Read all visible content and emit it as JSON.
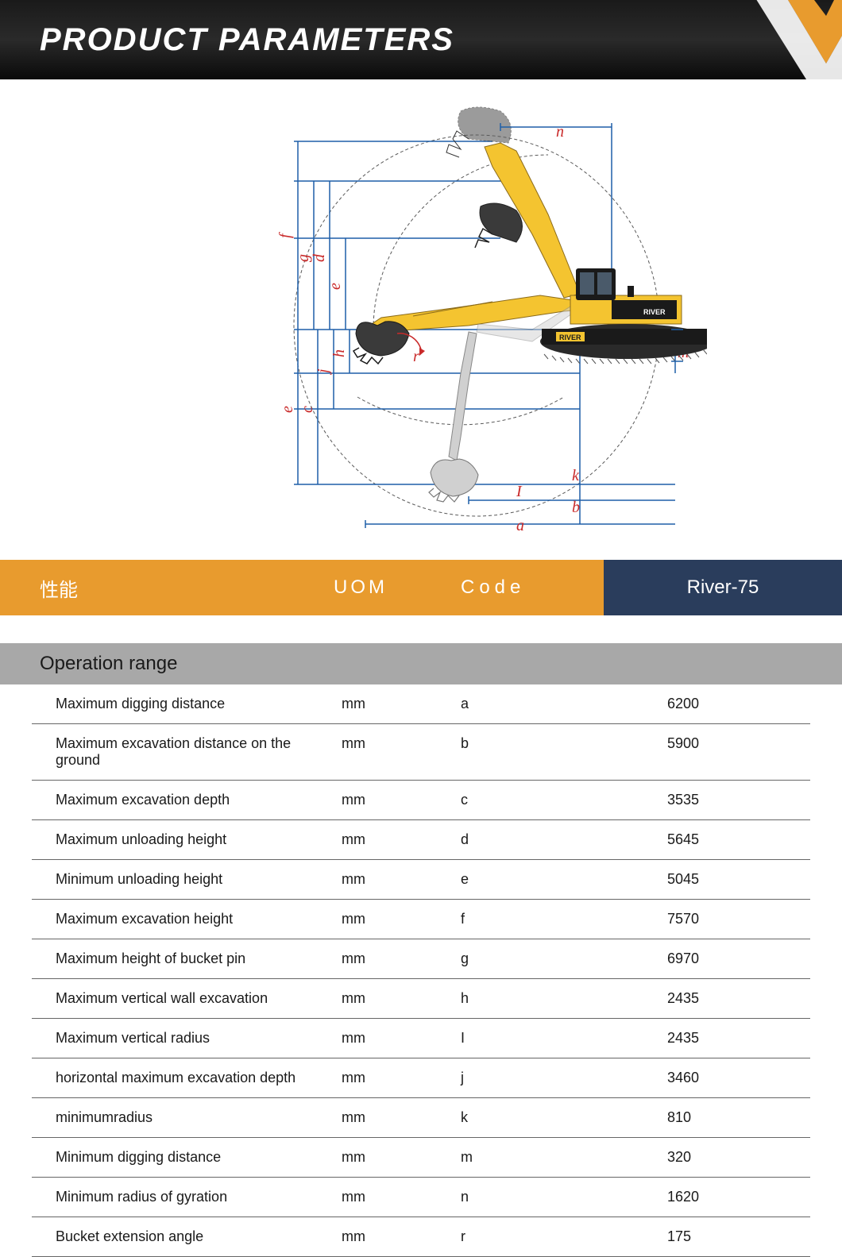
{
  "header": {
    "title": "PRODUCT PARAMETERS",
    "chevron_colors": {
      "outer": "#e89b2e",
      "inner": "#ffffff"
    }
  },
  "diagram": {
    "excavator_body_color": "#f4c430",
    "excavator_cab_color": "#1a1a1a",
    "track_color": "#2a2a2a",
    "guide_line_color": "#1e5fa8",
    "label_color": "#c92a2a",
    "outline_color": "#5a5a5a",
    "labels": [
      "a",
      "b",
      "c",
      "d",
      "e",
      "f",
      "g",
      "h",
      "I",
      "j",
      "k",
      "m",
      "n",
      "r"
    ],
    "brand_text": "RIVER"
  },
  "column_headers": {
    "performance": "性能",
    "uom": "UOM",
    "code": "Code",
    "model": "River-75",
    "orange_bg": "#e89b2e",
    "blue_bg": "#2a3d5c"
  },
  "section": {
    "title": "Operation range",
    "bg_color": "#a8a8a8"
  },
  "specs": [
    {
      "label": "Maximum digging distance",
      "uom": "mm",
      "code": "a",
      "value": "6200"
    },
    {
      "label": "Maximum excavation distance on the ground",
      "uom": "mm",
      "code": "b",
      "value": "5900"
    },
    {
      "label": "Maximum excavation depth",
      "uom": "mm",
      "code": "c",
      "value": "3535"
    },
    {
      "label": "Maximum unloading height",
      "uom": "mm",
      "code": "d",
      "value": "5645"
    },
    {
      "label": "Minimum unloading height",
      "uom": "mm",
      "code": "e",
      "value": "5045"
    },
    {
      "label": "Maximum excavation height",
      "uom": "mm",
      "code": "f",
      "value": "7570"
    },
    {
      "label": "Maximum height of bucket pin",
      "uom": "mm",
      "code": "g",
      "value": "6970"
    },
    {
      "label": "Maximum vertical wall excavation",
      "uom": "mm",
      "code": "h",
      "value": "2435"
    },
    {
      "label": "Maximum vertical radius",
      "uom": "mm",
      "code": "I",
      "value": "2435"
    },
    {
      "label": "horizontal maximum excavation depth",
      "uom": "mm",
      "code": "j",
      "value": "3460"
    },
    {
      "label": "minimumradius",
      "uom": "mm",
      "code": "k",
      "value": "810"
    },
    {
      "label": "Minimum digging distance",
      "uom": "mm",
      "code": "m",
      "value": "320"
    },
    {
      "label": "Minimum radius of gyration",
      "uom": "mm",
      "code": "n",
      "value": "1620"
    },
    {
      "label": "Bucket extension angle",
      "uom": "mm",
      "code": "r",
      "value": "175"
    }
  ]
}
